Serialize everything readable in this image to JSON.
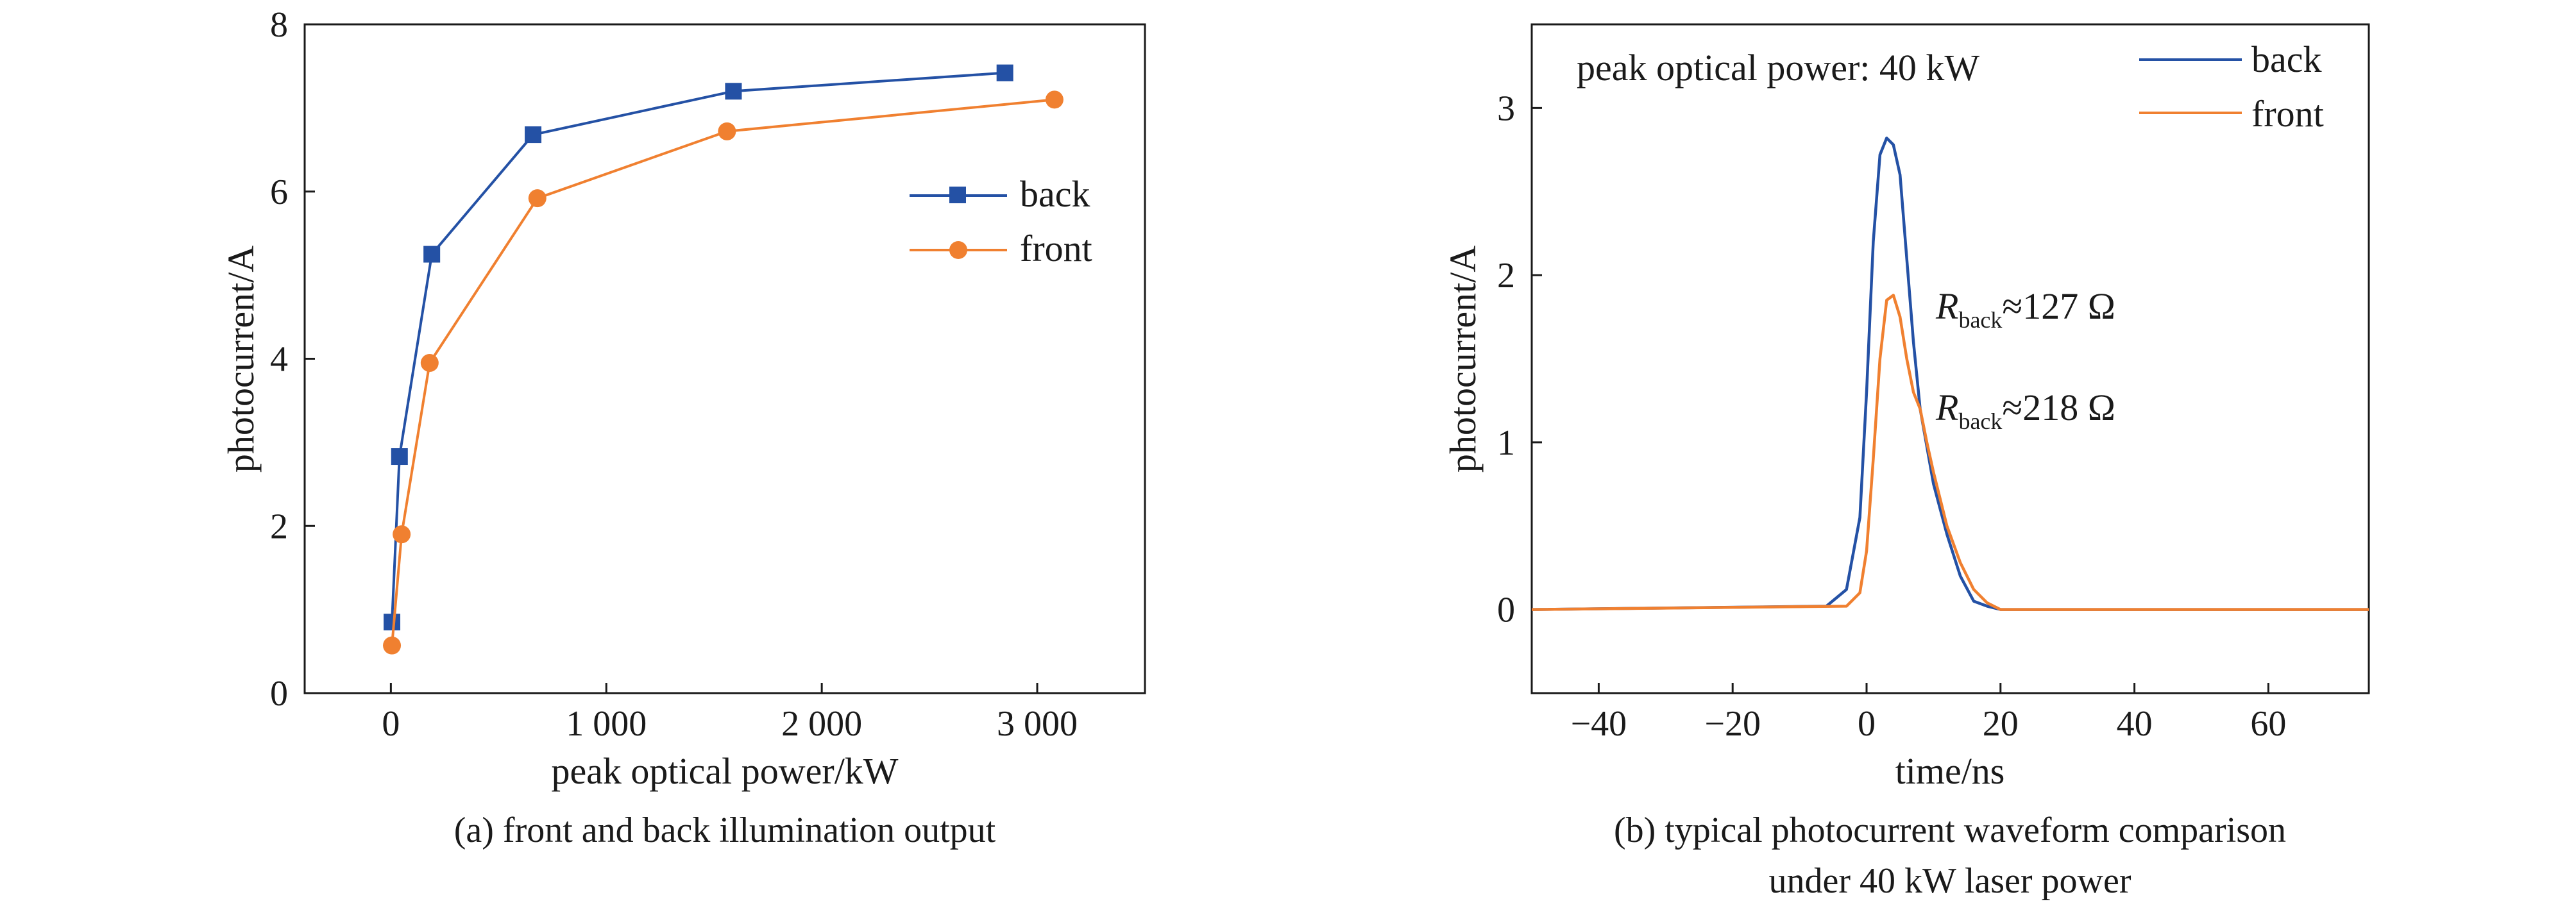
{
  "colors": {
    "back": "#2451a5",
    "front": "#f08030",
    "axis": "#1a1a1a"
  },
  "chart_data": [
    {
      "type": "line",
      "caption": "(a) front and back illumination output",
      "xlabel": "peak optical power/kW",
      "ylabel": "photocurrent/A",
      "xlim": [
        -400,
        3500
      ],
      "ylim": [
        0,
        8
      ],
      "xticks": [
        0,
        1000,
        2000,
        3000
      ],
      "xtick_labels": [
        "0",
        "1 000",
        "2 000",
        "3 000"
      ],
      "yticks": [
        0,
        2,
        4,
        6,
        8
      ],
      "ytick_labels": [
        "0",
        "2",
        "4",
        "6",
        "8"
      ],
      "legend_position": "right",
      "series": [
        {
          "name": "back",
          "marker": "square",
          "x": [
            5,
            40,
            190,
            660,
            1590,
            2850
          ],
          "y": [
            0.85,
            2.83,
            5.25,
            6.68,
            7.2,
            7.42
          ]
        },
        {
          "name": "front",
          "marker": "circle",
          "x": [
            5,
            50,
            180,
            680,
            1560,
            3080
          ],
          "y": [
            0.57,
            1.9,
            3.95,
            5.92,
            6.72,
            7.1
          ]
        }
      ]
    },
    {
      "type": "line",
      "caption_lines": [
        "(b) typical photocurrent waveform comparison",
        "under 40 kW laser power"
      ],
      "xlabel": "time/ns",
      "ylabel": "photocurrent/A",
      "xlim": [
        -50,
        75
      ],
      "ylim": [
        -0.5,
        3.5
      ],
      "xticks": [
        -40,
        -20,
        0,
        20,
        40,
        60
      ],
      "xtick_labels": [
        "−40",
        "−20",
        "0",
        "20",
        "40",
        "60"
      ],
      "yticks": [
        0,
        1,
        2,
        3
      ],
      "ytick_labels": [
        "0",
        "1",
        "2",
        "3"
      ],
      "legend_position": "top-right",
      "annotation_text": "peak optical power: 40 kW",
      "labels": [
        {
          "main": "R",
          "sub": "back",
          "rest": "≈127 Ω"
        },
        {
          "main": "R",
          "sub": "back",
          "rest": "≈218 Ω"
        }
      ],
      "series": [
        {
          "name": "back",
          "x": [
            -50,
            -6,
            -3,
            -1,
            0,
            1,
            2,
            3,
            4,
            5,
            6,
            7,
            8,
            10,
            12,
            14,
            16,
            18,
            20,
            75
          ],
          "y": [
            0,
            0.02,
            0.12,
            0.55,
            1.3,
            2.2,
            2.72,
            2.82,
            2.78,
            2.6,
            2.1,
            1.6,
            1.2,
            0.75,
            0.45,
            0.2,
            0.05,
            0.02,
            0,
            0
          ]
        },
        {
          "name": "front",
          "x": [
            -50,
            -3,
            -1,
            0,
            1,
            2,
            3,
            4,
            5,
            6,
            7,
            8,
            9,
            10,
            12,
            14,
            16,
            18,
            20,
            75
          ],
          "y": [
            0,
            0.02,
            0.1,
            0.35,
            0.9,
            1.5,
            1.85,
            1.88,
            1.75,
            1.5,
            1.3,
            1.2,
            1.0,
            0.82,
            0.5,
            0.28,
            0.12,
            0.04,
            0,
            0
          ]
        }
      ]
    }
  ]
}
